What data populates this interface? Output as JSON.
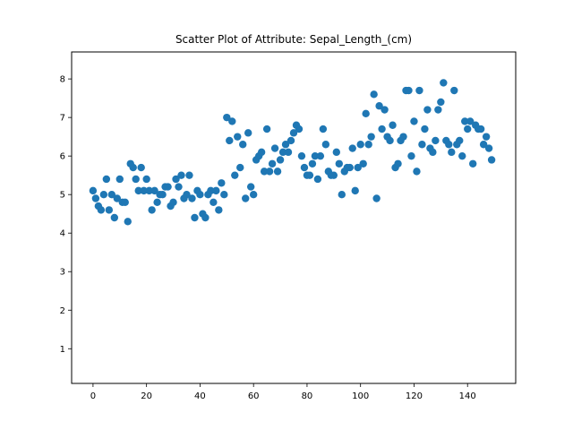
{
  "chart_data": {
    "type": "scatter",
    "title": "Scatter Plot of Attribute: Sepal_Length_(cm)",
    "xlabel": "",
    "ylabel": "",
    "xlim": [
      -8,
      158
    ],
    "ylim": [
      0.1,
      8.7
    ],
    "x_ticks": [
      0,
      20,
      40,
      60,
      80,
      100,
      120,
      140
    ],
    "y_ticks": [
      1,
      2,
      3,
      4,
      5,
      6,
      7,
      8
    ],
    "grid": false,
    "marker_color": "#1f77b4",
    "x": [
      0,
      1,
      2,
      3,
      4,
      5,
      6,
      7,
      8,
      9,
      10,
      11,
      12,
      13,
      14,
      15,
      16,
      17,
      18,
      19,
      20,
      21,
      22,
      23,
      24,
      25,
      26,
      27,
      28,
      29,
      30,
      31,
      32,
      33,
      34,
      35,
      36,
      37,
      38,
      39,
      40,
      41,
      42,
      43,
      44,
      45,
      46,
      47,
      48,
      49,
      50,
      51,
      52,
      53,
      54,
      55,
      56,
      57,
      58,
      59,
      60,
      61,
      62,
      63,
      64,
      65,
      66,
      67,
      68,
      69,
      70,
      71,
      72,
      73,
      74,
      75,
      76,
      77,
      78,
      79,
      80,
      81,
      82,
      83,
      84,
      85,
      86,
      87,
      88,
      89,
      90,
      91,
      92,
      93,
      94,
      95,
      96,
      97,
      98,
      99,
      100,
      101,
      102,
      103,
      104,
      105,
      106,
      107,
      108,
      109,
      110,
      111,
      112,
      113,
      114,
      115,
      116,
      117,
      118,
      119,
      120,
      121,
      122,
      123,
      124,
      125,
      126,
      127,
      128,
      129,
      130,
      131,
      132,
      133,
      134,
      135,
      136,
      137,
      138,
      139,
      140,
      141,
      142,
      143,
      144,
      145,
      146,
      147,
      148,
      149
    ],
    "y": [
      5.1,
      4.9,
      4.7,
      4.6,
      5.0,
      5.4,
      4.6,
      5.0,
      4.4,
      4.9,
      5.4,
      4.8,
      4.8,
      4.3,
      5.8,
      5.7,
      5.4,
      5.1,
      5.7,
      5.1,
      5.4,
      5.1,
      4.6,
      5.1,
      4.8,
      5.0,
      5.0,
      5.2,
      5.2,
      4.7,
      4.8,
      5.4,
      5.2,
      5.5,
      4.9,
      5.0,
      5.5,
      4.9,
      4.4,
      5.1,
      5.0,
      4.5,
      4.4,
      5.0,
      5.1,
      4.8,
      5.1,
      4.6,
      5.3,
      5.0,
      7.0,
      6.4,
      6.9,
      5.5,
      6.5,
      5.7,
      6.3,
      4.9,
      6.6,
      5.2,
      5.0,
      5.9,
      6.0,
      6.1,
      5.6,
      6.7,
      5.6,
      5.8,
      6.2,
      5.6,
      5.9,
      6.1,
      6.3,
      6.1,
      6.4,
      6.6,
      6.8,
      6.7,
      6.0,
      5.7,
      5.5,
      5.5,
      5.8,
      6.0,
      5.4,
      6.0,
      6.7,
      6.3,
      5.6,
      5.5,
      5.5,
      6.1,
      5.8,
      5.0,
      5.6,
      5.7,
      5.7,
      6.2,
      5.1,
      5.7,
      6.3,
      5.8,
      7.1,
      6.3,
      6.5,
      7.6,
      4.9,
      7.3,
      6.7,
      7.2,
      6.5,
      6.4,
      6.8,
      5.7,
      5.8,
      6.4,
      6.5,
      7.7,
      7.7,
      6.0,
      6.9,
      5.6,
      7.7,
      6.3,
      6.7,
      7.2,
      6.2,
      6.1,
      6.4,
      7.2,
      7.4,
      7.9,
      6.4,
      6.3,
      6.1,
      7.7,
      6.3,
      6.4,
      6.0,
      6.9,
      6.7,
      6.9,
      5.8,
      6.8,
      6.7,
      6.7,
      6.3,
      6.5,
      6.2,
      5.9
    ]
  }
}
